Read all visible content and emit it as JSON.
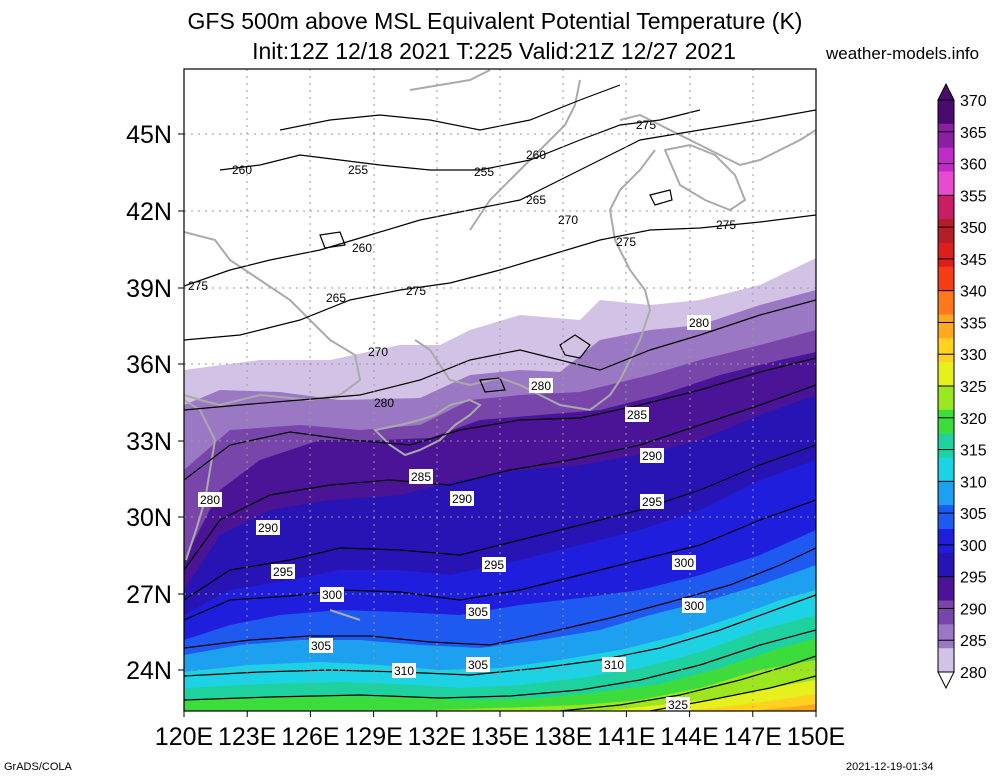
{
  "header": {
    "title_line1": "GFS 500m above MSL Equivalent Potential Temperature (K)",
    "title_line2": "Init:12Z 12/18 2021 T:225 Valid:21Z 12/27 2021",
    "brand": "weather-models.info"
  },
  "footer": {
    "left": "GrADS/COLA",
    "right": "2021-12-19-01:34"
  },
  "map": {
    "x_ticks": [
      "120E",
      "123E",
      "126E",
      "129E",
      "132E",
      "135E",
      "138E",
      "141E",
      "144E",
      "147E",
      "150E"
    ],
    "y_ticks": [
      "45N",
      "42N",
      "39N",
      "36N",
      "33N",
      "30N",
      "27N",
      "24N"
    ],
    "land_color": "#aaaaaa",
    "contour_color": "#000000",
    "contour_labels": [
      {
        "text": "260",
        "boxed": false
      },
      {
        "text": "255",
        "boxed": false
      },
      {
        "text": "255",
        "boxed": false
      },
      {
        "text": "260",
        "boxed": false
      },
      {
        "text": "265",
        "boxed": false
      },
      {
        "text": "270",
        "boxed": false
      },
      {
        "text": "275",
        "boxed": false
      },
      {
        "text": "275",
        "boxed": false
      },
      {
        "text": "275",
        "boxed": false
      },
      {
        "text": "260",
        "boxed": false
      },
      {
        "text": "265",
        "boxed": false
      },
      {
        "text": "275",
        "boxed": false
      },
      {
        "text": "275",
        "boxed": false
      },
      {
        "text": "270",
        "boxed": false
      },
      {
        "text": "280",
        "boxed": false
      },
      {
        "text": "280",
        "boxed": true
      },
      {
        "text": "280",
        "boxed": true
      },
      {
        "text": "285",
        "boxed": true
      },
      {
        "text": "290",
        "boxed": true
      },
      {
        "text": "295",
        "boxed": true
      },
      {
        "text": "280",
        "boxed": true
      },
      {
        "text": "285",
        "boxed": true
      },
      {
        "text": "290",
        "boxed": true
      },
      {
        "text": "290",
        "boxed": true
      },
      {
        "text": "295",
        "boxed": true
      },
      {
        "text": "300",
        "boxed": true
      },
      {
        "text": "295",
        "boxed": true
      },
      {
        "text": "300",
        "boxed": true
      },
      {
        "text": "305",
        "boxed": true
      },
      {
        "text": "300",
        "boxed": true
      },
      {
        "text": "305",
        "boxed": true
      },
      {
        "text": "305",
        "boxed": true
      },
      {
        "text": "310",
        "boxed": true
      },
      {
        "text": "310",
        "boxed": true
      },
      {
        "text": "325",
        "boxed": true
      }
    ]
  },
  "colorbar": {
    "unit": "K",
    "levels": [
      {
        "label": "370",
        "color": "#4b0a6e"
      },
      {
        "label": "365",
        "color": "#8a1fa0"
      },
      {
        "label": "360",
        "color": "#c02ac8"
      },
      {
        "label": "355",
        "color": "#e64bd0"
      },
      {
        "label": "350",
        "color": "#c81e64"
      },
      {
        "label": "345",
        "color": "#b41e28"
      },
      {
        "label": "340",
        "color": "#dc1e1e"
      },
      {
        "label": "335",
        "color": "#f53c14"
      },
      {
        "label": "330",
        "color": "#ff781e"
      },
      {
        "label": "325",
        "color": "#ffaa1e"
      },
      {
        "label": "320",
        "color": "#ffd21e"
      },
      {
        "label": "315",
        "color": "#e6f01e"
      },
      {
        "label": "310",
        "color": "#9be61e"
      },
      {
        "label": "305",
        "color": "#3cdc3c"
      },
      {
        "label": "300",
        "color": "#1ed2a0"
      },
      {
        "label": "295",
        "color": "#1ed2e6"
      },
      {
        "label": "290",
        "color": "#1ea0f0"
      },
      {
        "label": "285",
        "color": "#1e5af0"
      },
      {
        "label": "280",
        "color": "#1e1edc"
      }
    ],
    "lower_levels": [
      {
        "color": "#2814b4"
      },
      {
        "color": "#4b1496"
      },
      {
        "color": "#7846aa"
      },
      {
        "color": "#9b78c3"
      },
      {
        "color": "#d2c3e6"
      }
    ]
  }
}
